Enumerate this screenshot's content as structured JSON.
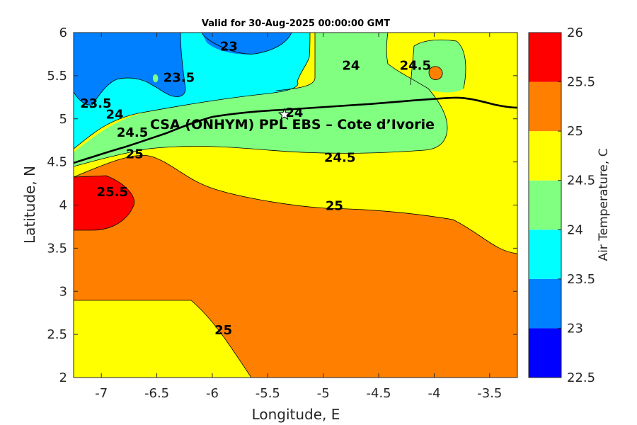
{
  "title": "Valid for 30-Aug-2025 00:00:00 GMT",
  "colors": {
    "c22_5": "#0000ff",
    "c23": "#0080ff",
    "c23_5": "#00ffff",
    "c24": "#80ff80",
    "c24_5": "#ffff00",
    "c25": "#ff8000",
    "c25_5": "#ff0000",
    "c26": "#800000",
    "coast": "#000000",
    "frame": "#262626"
  },
  "chart_data": {
    "type": "contourf",
    "xlabel": "Longitude, E",
    "ylabel": "Latitude, N",
    "xlim": [
      -7.25,
      -3.25
    ],
    "ylim": [
      2,
      6
    ],
    "xticks": [
      -7,
      -6.5,
      -6,
      -5.5,
      -5,
      -4.5,
      -4,
      -3.5
    ],
    "xtick_labels": [
      "-7",
      "-6.5",
      "-6",
      "-5.5",
      "-5",
      "-4.5",
      "-4",
      "-3.5"
    ],
    "yticks": [
      2,
      2.5,
      3,
      3.5,
      4,
      4.5,
      5,
      5.5,
      6
    ],
    "ytick_labels": [
      "2",
      "2.5",
      "3",
      "3.5",
      "4",
      "4.5",
      "5",
      "5.5",
      "6"
    ],
    "colorbar": {
      "label": "Air Temperature, C",
      "levels": [
        22.5,
        23,
        23.5,
        24,
        24.5,
        25,
        25.5,
        26
      ],
      "level_labels": [
        "22.5",
        "23",
        "23.5",
        "24",
        "24.5",
        "25",
        "25.5",
        "26"
      ]
    },
    "contour_labels": [
      {
        "text": "23",
        "lon": -5.85,
        "lat": 5.84
      },
      {
        "text": "23.5",
        "lon": -6.3,
        "lat": 5.48
      },
      {
        "text": "23.5",
        "lon": -7.05,
        "lat": 5.18
      },
      {
        "text": "24",
        "lon": -6.88,
        "lat": 5.05
      },
      {
        "text": "24.5",
        "lon": -6.72,
        "lat": 4.84
      },
      {
        "text": "25",
        "lon": -6.7,
        "lat": 4.59
      },
      {
        "text": "25.5",
        "lon": -6.9,
        "lat": 4.15
      },
      {
        "text": "24",
        "lon": -5.26,
        "lat": 5.07
      },
      {
        "text": "24",
        "lon": -4.75,
        "lat": 5.62
      },
      {
        "text": "24.5",
        "lon": -4.17,
        "lat": 5.62
      },
      {
        "text": "24.5",
        "lon": -4.85,
        "lat": 4.55
      },
      {
        "text": "25",
        "lon": -4.9,
        "lat": 3.99
      },
      {
        "text": "25",
        "lon": -5.9,
        "lat": 2.55
      }
    ],
    "site": {
      "label": "CSA (ONHYM) PPL EBS  – Cote d’Ivorie",
      "marker": "star",
      "lon": -5.35,
      "lat": 5.05
    },
    "grid": false
  }
}
